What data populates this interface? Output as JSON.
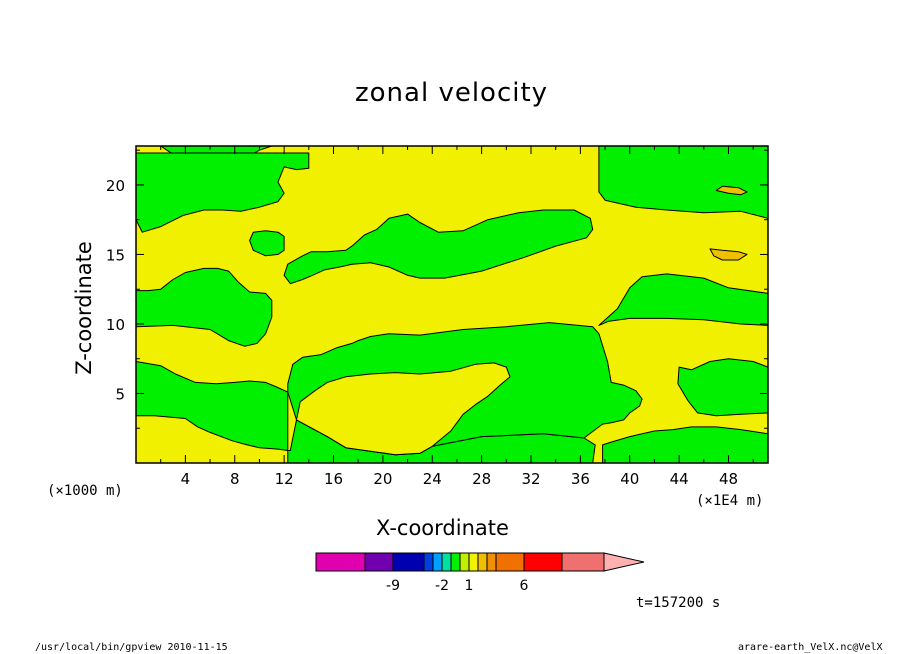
{
  "chart_data": {
    "type": "heatmap",
    "title": "zonal velocity",
    "xlabel": "X-coordinate",
    "ylabel": "Z-coordinate",
    "x_unit_left": "(×1000 m)",
    "x_unit_right": "(×1E4 m)",
    "x_ticks": [
      4,
      8,
      12,
      16,
      20,
      24,
      28,
      32,
      36,
      40,
      44,
      48
    ],
    "x_tick_labels": [
      "4",
      "8",
      "12",
      "16",
      "20",
      "24",
      "28",
      "32",
      "36",
      "40",
      "44",
      "48"
    ],
    "y_ticks": [
      5,
      10,
      15,
      20
    ],
    "y_tick_labels": [
      "5",
      "10",
      "15",
      "20"
    ],
    "xlim": [
      0,
      51.2
    ],
    "ylim": [
      0,
      22.8
    ],
    "grid": false,
    "fill_colors": {
      "low": "#00f000",
      "mid": "#f0f000",
      "high": "#f0c000"
    },
    "regions": [
      {
        "level": "low",
        "points": [
          [
            0,
            22.8
          ],
          [
            2,
            22.8
          ],
          [
            3,
            22.2
          ],
          [
            4,
            21
          ],
          [
            5,
            20.8
          ],
          [
            6,
            21.2
          ],
          [
            7,
            21.5
          ],
          [
            8,
            21.7
          ],
          [
            9,
            22
          ],
          [
            10,
            22.5
          ],
          [
            11,
            22.8
          ],
          [
            0,
            22.8
          ]
        ]
      },
      {
        "level": "low",
        "points": [
          [
            0,
            17.5
          ],
          [
            0.5,
            16.6
          ],
          [
            2,
            17
          ],
          [
            3.8,
            17.8
          ],
          [
            5.5,
            18.2
          ],
          [
            7,
            18.2
          ],
          [
            8.5,
            18.1
          ],
          [
            10,
            18.4
          ],
          [
            11.5,
            18.8
          ],
          [
            12,
            19.4
          ],
          [
            11.5,
            20.2
          ],
          [
            12,
            21.3
          ],
          [
            13,
            21.1
          ],
          [
            14,
            21.2
          ],
          [
            14,
            22.3
          ],
          [
            0,
            22.3
          ]
        ]
      },
      {
        "level": "low",
        "points": [
          [
            0,
            9.8
          ],
          [
            3,
            9.9
          ],
          [
            6,
            9.6
          ],
          [
            7.5,
            8.8
          ],
          [
            8.8,
            8.4
          ],
          [
            9.8,
            8.6
          ],
          [
            10.5,
            9.3
          ],
          [
            11,
            10.5
          ],
          [
            11,
            11.7
          ],
          [
            10.5,
            12.2
          ],
          [
            9.2,
            12.3
          ],
          [
            8.3,
            13
          ],
          [
            7.5,
            13.8
          ],
          [
            6.6,
            14
          ],
          [
            5.5,
            14
          ],
          [
            4,
            13.7
          ],
          [
            3,
            13.2
          ],
          [
            2,
            12.5
          ],
          [
            1,
            12.4
          ],
          [
            0,
            12.4
          ]
        ]
      },
      {
        "level": "low",
        "points": [
          [
            0,
            7.3
          ],
          [
            2,
            7
          ],
          [
            3.2,
            6.4
          ],
          [
            4.8,
            5.8
          ],
          [
            6.5,
            5.7
          ],
          [
            8,
            5.8
          ],
          [
            9.2,
            5.9
          ],
          [
            10.5,
            5.8
          ],
          [
            11.3,
            5.5
          ],
          [
            12.3,
            5.1
          ],
          [
            12.3,
            0.9
          ],
          [
            11.5,
            1
          ],
          [
            10,
            1.1
          ],
          [
            9,
            1.3
          ],
          [
            7.8,
            1.6
          ],
          [
            6,
            2.2
          ],
          [
            5,
            2.6
          ],
          [
            4,
            3.2
          ],
          [
            1.5,
            3.4
          ],
          [
            0,
            3.4
          ]
        ]
      },
      {
        "level": "low",
        "points": [
          [
            0,
            0
          ],
          [
            37,
            0
          ],
          [
            37.2,
            1.3
          ],
          [
            36.3,
            1.8
          ],
          [
            33,
            2.1
          ],
          [
            28,
            1.9
          ],
          [
            24,
            1.2
          ],
          [
            23,
            0.7
          ],
          [
            21,
            0.6
          ],
          [
            17,
            1.1
          ],
          [
            15.5,
            1.9
          ],
          [
            13,
            3.1
          ],
          [
            12.5,
            0.9
          ],
          [
            12.3,
            0.9
          ],
          [
            12.3,
            0
          ],
          [
            0,
            0
          ]
        ]
      },
      {
        "level": "low",
        "points": [
          [
            12.3,
            5.1
          ],
          [
            12.3,
            5.7
          ],
          [
            12.7,
            7.1
          ],
          [
            13.5,
            7.6
          ],
          [
            15,
            7.8
          ],
          [
            16.3,
            8.3
          ],
          [
            17.5,
            8.6
          ],
          [
            18,
            8.8
          ],
          [
            19,
            9.1
          ],
          [
            20.5,
            9.3
          ],
          [
            23,
            9.2
          ],
          [
            26.5,
            9.6
          ],
          [
            30,
            9.8
          ],
          [
            33.5,
            10.1
          ],
          [
            37,
            9.8
          ],
          [
            37.5,
            9.3
          ],
          [
            38.2,
            7.3
          ],
          [
            38.5,
            5.8
          ],
          [
            39.5,
            5.6
          ],
          [
            40.5,
            5.2
          ],
          [
            41,
            4.6
          ],
          [
            40.8,
            4.1
          ],
          [
            40,
            3.6
          ],
          [
            39.5,
            3.1
          ],
          [
            38.5,
            2.9
          ],
          [
            37.8,
            2.8
          ],
          [
            37.2,
            2.4
          ],
          [
            36.3,
            1.8
          ],
          [
            33,
            2.1
          ],
          [
            28,
            1.9
          ],
          [
            24,
            1.2
          ],
          [
            23,
            0.7
          ],
          [
            21,
            0.6
          ],
          [
            17,
            1.1
          ],
          [
            15.5,
            1.9
          ],
          [
            13,
            3.1
          ]
        ]
      },
      {
        "level": "mid",
        "points": [
          [
            13,
            3.1
          ],
          [
            15.5,
            1.9
          ],
          [
            17,
            1.1
          ],
          [
            21,
            0.6
          ],
          [
            23,
            0.7
          ],
          [
            24,
            1.2
          ],
          [
            25.5,
            2.3
          ],
          [
            26.5,
            3.5
          ],
          [
            27.5,
            4.2
          ],
          [
            28.5,
            4.8
          ],
          [
            29.5,
            5.6
          ],
          [
            30.3,
            6.2
          ],
          [
            30,
            6.9
          ],
          [
            29,
            7.2
          ],
          [
            27.5,
            7.1
          ],
          [
            25.5,
            6.6
          ],
          [
            23,
            6.4
          ],
          [
            21,
            6.5
          ],
          [
            19,
            6.4
          ],
          [
            17,
            6.2
          ],
          [
            15.5,
            5.8
          ],
          [
            14.5,
            5.2
          ],
          [
            13.3,
            4.4
          ]
        ]
      },
      {
        "level": "low",
        "points": [
          [
            12,
            13.5
          ],
          [
            12.3,
            14.3
          ],
          [
            13.5,
            14.9
          ],
          [
            14.2,
            15.2
          ],
          [
            15.5,
            15.2
          ],
          [
            17,
            15.3
          ],
          [
            17.5,
            15.6
          ],
          [
            18.5,
            16.4
          ],
          [
            19.5,
            16.8
          ],
          [
            20.5,
            17.6
          ],
          [
            22,
            17.9
          ],
          [
            23,
            17.3
          ],
          [
            24.5,
            16.6
          ],
          [
            26.5,
            16.7
          ],
          [
            28.5,
            17.5
          ],
          [
            31,
            18
          ],
          [
            33,
            18.2
          ],
          [
            35.5,
            18.2
          ],
          [
            36.8,
            17.6
          ],
          [
            37,
            16.8
          ],
          [
            36.5,
            16.2
          ],
          [
            34,
            15.6
          ],
          [
            31.5,
            14.8
          ],
          [
            28,
            13.8
          ],
          [
            25,
            13.3
          ],
          [
            23,
            13.3
          ],
          [
            22,
            13.5
          ],
          [
            20.5,
            14.1
          ],
          [
            19,
            14.4
          ],
          [
            17.5,
            14.3
          ],
          [
            16.5,
            14.1
          ],
          [
            15.3,
            13.9
          ],
          [
            14.3,
            13.5
          ],
          [
            13.5,
            13.2
          ],
          [
            12.5,
            12.9
          ]
        ]
      },
      {
        "level": "low",
        "points": [
          [
            9.5,
            15.3
          ],
          [
            10.5,
            14.9
          ],
          [
            11.5,
            15
          ],
          [
            12,
            15.3
          ],
          [
            12,
            16.3
          ],
          [
            11.5,
            16.6
          ],
          [
            10.5,
            16.7
          ],
          [
            9.5,
            16.6
          ],
          [
            9.2,
            16
          ]
        ]
      },
      {
        "level": "low",
        "points": [
          [
            37.5,
            22.8
          ],
          [
            51.2,
            22.8
          ],
          [
            51.2,
            17.6
          ],
          [
            49,
            18.1
          ],
          [
            46,
            18
          ],
          [
            43,
            18.2
          ],
          [
            40.5,
            18.4
          ],
          [
            38,
            18.9
          ],
          [
            37.5,
            19.5
          ]
        ]
      },
      {
        "level": "low",
        "points": [
          [
            37.5,
            9.9
          ],
          [
            38.3,
            10.2
          ],
          [
            40,
            10.4
          ],
          [
            43,
            10.4
          ],
          [
            46,
            10.3
          ],
          [
            49,
            10
          ],
          [
            51.2,
            9.9
          ],
          [
            51.2,
            12.2
          ],
          [
            48,
            12.6
          ],
          [
            46,
            13.3
          ],
          [
            43,
            13.6
          ],
          [
            41,
            13.4
          ],
          [
            40,
            12.6
          ],
          [
            39,
            11.1
          ]
        ]
      },
      {
        "level": "low",
        "points": [
          [
            44,
            6.9
          ],
          [
            45,
            6.7
          ],
          [
            46.5,
            7.3
          ],
          [
            48,
            7.5
          ],
          [
            50,
            7.3
          ],
          [
            51.2,
            6.9
          ],
          [
            51.2,
            3.6
          ],
          [
            49,
            3.5
          ],
          [
            47,
            3.4
          ],
          [
            45.5,
            3.6
          ],
          [
            44.7,
            4.5
          ],
          [
            43.9,
            5.7
          ]
        ]
      },
      {
        "level": "low",
        "points": [
          [
            37.8,
            0
          ],
          [
            51.2,
            0
          ],
          [
            51.2,
            2.1
          ],
          [
            49,
            2.4
          ],
          [
            47,
            2.6
          ],
          [
            45,
            2.6
          ],
          [
            43.5,
            2.4
          ],
          [
            42,
            2.3
          ],
          [
            40,
            1.9
          ],
          [
            38.5,
            1.5
          ],
          [
            37.8,
            1.3
          ]
        ]
      },
      {
        "level": "high",
        "points": [
          [
            46.5,
            15.4
          ],
          [
            47.5,
            15.3
          ],
          [
            48.8,
            15.2
          ],
          [
            49.5,
            15
          ],
          [
            48.8,
            14.6
          ],
          [
            47.5,
            14.6
          ],
          [
            46.8,
            14.9
          ]
        ]
      },
      {
        "level": "high",
        "points": [
          [
            47,
            19.6
          ],
          [
            48,
            19.4
          ],
          [
            49,
            19.3
          ],
          [
            49.5,
            19.5
          ],
          [
            48.8,
            19.8
          ],
          [
            47.5,
            19.9
          ]
        ]
      }
    ],
    "colorbar": {
      "colors": [
        "#e000b0",
        "#7000b0",
        "#0000b0",
        "#0040e0",
        "#00a0ff",
        "#00e0a0",
        "#00f000",
        "#c0f000",
        "#f0f000",
        "#f0c000",
        "#f09000",
        "#f07000",
        "#ff0000",
        "#f07070",
        "#ffb0b0"
      ],
      "tick_labels": [
        "-9",
        "-2",
        "1",
        "6"
      ]
    },
    "annotation": "t=157200 s"
  },
  "footer": {
    "left": "/usr/local/bin/gpview  2010-11-15",
    "right": "arare-earth_VelX.nc@VelX"
  }
}
